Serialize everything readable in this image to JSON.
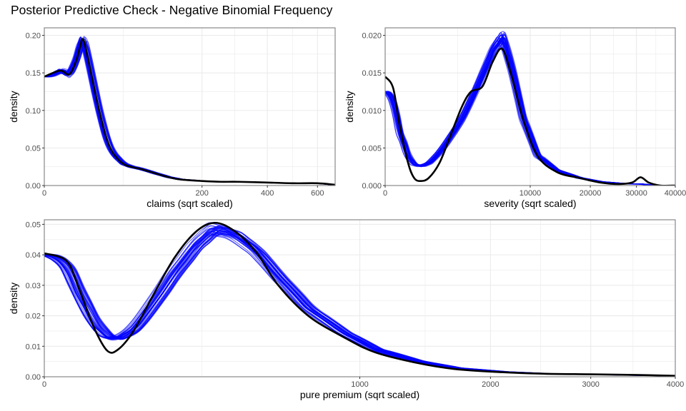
{
  "title": "Posterior Predictive Check - Negative Binomial Frequency",
  "colors": {
    "replicate": "#0000ff",
    "observed": "#000000",
    "grid": "#ebebeb",
    "panel_border": "#7f7f7f"
  },
  "chart_data": [
    {
      "type": "line",
      "id": "claims",
      "xlabel": "claims (sqrt scaled)",
      "ylabel": "density",
      "x_scale": "sqrt",
      "xlim": [
        0,
        680
      ],
      "ylim": [
        0,
        0.21
      ],
      "x_ticks": [
        0,
        200,
        400,
        600
      ],
      "y_ticks": [
        0.0,
        0.05,
        0.1,
        0.15,
        0.2
      ],
      "y_tick_labels": [
        "0.00",
        "0.05",
        "0.10",
        "0.15",
        "0.20"
      ],
      "grid": true,
      "observed": {
        "x": [
          0,
          2,
          5,
          8,
          10,
          12,
          15,
          20,
          25,
          30,
          35,
          40,
          50,
          60,
          75,
          100,
          125,
          150,
          200,
          250,
          300,
          400,
          500,
          600,
          680
        ],
        "y": [
          0.145,
          0.153,
          0.148,
          0.165,
          0.182,
          0.195,
          0.172,
          0.13,
          0.095,
          0.068,
          0.05,
          0.04,
          0.029,
          0.025,
          0.022,
          0.016,
          0.011,
          0.008,
          0.006,
          0.005,
          0.005,
          0.004,
          0.003,
          0.003,
          0.001
        ]
      },
      "replicates": {
        "count": 40,
        "spread": 0.06
      }
    },
    {
      "type": "line",
      "id": "severity",
      "xlabel": "severity (sqrt scaled)",
      "ylabel": "density",
      "x_scale": "sqrt",
      "xlim": [
        0,
        40000
      ],
      "ylim": [
        0,
        0.021
      ],
      "x_ticks": [
        0,
        10000,
        20000,
        30000,
        40000
      ],
      "y_ticks": [
        0.0,
        0.005,
        0.01,
        0.015,
        0.02
      ],
      "y_tick_labels": [
        "0.000",
        "0.005",
        "0.010",
        "0.015",
        "0.020"
      ],
      "grid": true,
      "observed": {
        "x": [
          0,
          30,
          100,
          250,
          400,
          600,
          900,
          1400,
          2000,
          2800,
          3500,
          4500,
          5500,
          6500,
          7500,
          9000,
          11000,
          14000,
          18000,
          22000,
          26000,
          29000,
          31000,
          33000,
          36000,
          40000
        ],
        "y": [
          0.0145,
          0.013,
          0.008,
          0.003,
          0.001,
          0.0006,
          0.001,
          0.003,
          0.0065,
          0.0105,
          0.0125,
          0.0132,
          0.0165,
          0.0182,
          0.015,
          0.009,
          0.004,
          0.0018,
          0.001,
          0.0004,
          0.0002,
          0.0004,
          0.0011,
          0.0004,
          0.0,
          0.0
        ]
      },
      "replicate_mean": {
        "x": [
          0,
          30,
          100,
          250,
          400,
          600,
          900,
          1400,
          2000,
          2800,
          3500,
          4500,
          5500,
          6500,
          7500,
          9000,
          11000,
          14000,
          18000,
          22000,
          26000,
          29000,
          31000,
          33000,
          36000,
          40000
        ],
        "y": [
          0.0125,
          0.011,
          0.007,
          0.0038,
          0.0028,
          0.0026,
          0.003,
          0.0045,
          0.0065,
          0.009,
          0.0115,
          0.015,
          0.0182,
          0.0198,
          0.016,
          0.009,
          0.004,
          0.002,
          0.001,
          0.0005,
          0.0003,
          0.0002,
          0.0002,
          0.0001,
          0.0,
          0.0
        ]
      },
      "replicates": {
        "count": 40,
        "spread": 0.06
      }
    },
    {
      "type": "line",
      "id": "pure_premium",
      "xlabel": "pure premium (sqrt scaled)",
      "ylabel": "density",
      "x_scale": "sqrt",
      "xlim": [
        0,
        4000
      ],
      "ylim": [
        0,
        0.0515
      ],
      "x_ticks": [
        0,
        1000,
        2000,
        3000,
        4000
      ],
      "y_ticks": [
        0.0,
        0.01,
        0.02,
        0.03,
        0.04,
        0.05
      ],
      "y_tick_labels": [
        "0.00",
        "0.01",
        "0.02",
        "0.03",
        "0.04",
        "0.05"
      ],
      "grid": true,
      "observed": {
        "x": [
          0,
          5,
          12,
          25,
          40,
          55,
          80,
          120,
          170,
          230,
          290,
          360,
          450,
          550,
          700,
          900,
          1100,
          1400,
          1700,
          2100,
          2500,
          3000,
          3500,
          4000
        ],
        "y": [
          0.0405,
          0.038,
          0.029,
          0.016,
          0.0085,
          0.009,
          0.015,
          0.027,
          0.039,
          0.0475,
          0.0505,
          0.048,
          0.041,
          0.03,
          0.02,
          0.013,
          0.008,
          0.0045,
          0.0025,
          0.0015,
          0.001,
          0.0008,
          0.0006,
          0.0003
        ]
      },
      "replicate_mean": {
        "x": [
          0,
          5,
          12,
          25,
          40,
          55,
          80,
          120,
          170,
          230,
          290,
          360,
          450,
          550,
          700,
          900,
          1100,
          1400,
          1700,
          2100,
          2500,
          3000,
          3500,
          4000
        ],
        "y": [
          0.04,
          0.036,
          0.027,
          0.0175,
          0.013,
          0.0125,
          0.0155,
          0.024,
          0.034,
          0.043,
          0.0485,
          0.047,
          0.0415,
          0.033,
          0.0225,
          0.0145,
          0.009,
          0.005,
          0.0028,
          0.0016,
          0.001,
          0.0008,
          0.0005,
          0.0003
        ]
      },
      "replicates": {
        "count": 40,
        "spread": 0.05
      }
    }
  ]
}
